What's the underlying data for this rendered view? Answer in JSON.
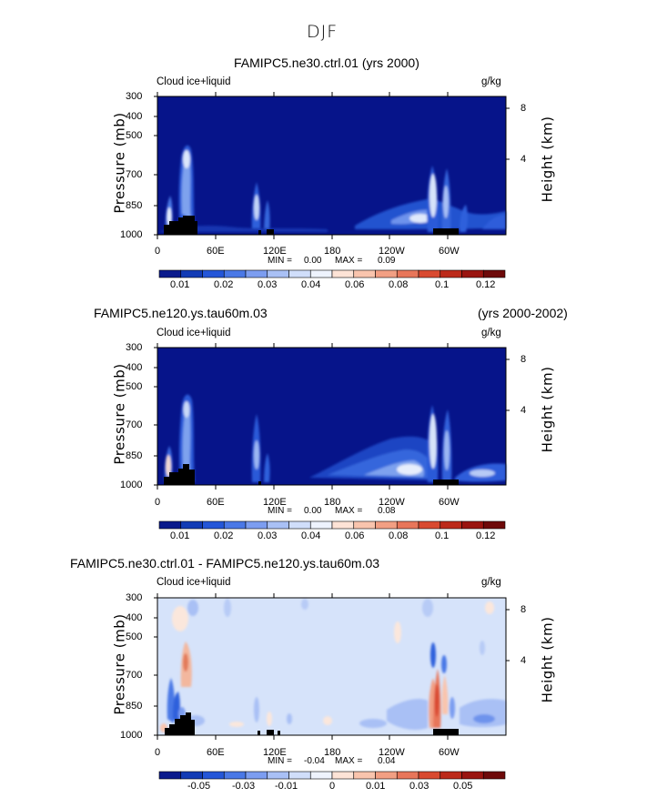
{
  "figure": {
    "suptitle": "DJF",
    "variable": "Cloud ice+liquid",
    "units": "g/kg"
  },
  "chart_data": [
    {
      "type": "heatmap",
      "title": "FAMIPC5.ne30.ctrl.01 (yrs 2000)",
      "title_right": "",
      "variable": "Cloud ice+liquid",
      "units": "g/kg",
      "ylabel": "Pressure (mb)",
      "ylabel_right": "Height (km)",
      "y_ticks": [
        "300",
        "400",
        "500",
        "700",
        "850",
        "1000"
      ],
      "y_right_ticks": [
        "8",
        "4"
      ],
      "x_ticks": [
        "0",
        "60E",
        "120E",
        "180",
        "120W",
        "60W"
      ],
      "min_label": "MIN =",
      "min_value": "0.00",
      "max_label": "MAX =",
      "max_value": "0.09",
      "colorbar_labels": [
        "0.01",
        "0.02",
        "0.03",
        "0.04",
        "0.06",
        "0.08",
        "0.1",
        "0.12"
      ],
      "colorbar_colors": [
        "#0a1a8c",
        "#123bb5",
        "#2456d8",
        "#4a78e6",
        "#7c9df0",
        "#a9c0f5",
        "#d0defa",
        "#eef3fd",
        "#fde3d6",
        "#f9c4ad",
        "#f29f83",
        "#e8765a",
        "#d94a30",
        "#bc2a1a",
        "#9a1510",
        "#6e0a0a"
      ]
    },
    {
      "type": "heatmap",
      "title": "FAMIPC5.ne120.ys.tau60m.03",
      "title_right": "(yrs 2000-2002)",
      "variable": "Cloud ice+liquid",
      "units": "g/kg",
      "ylabel": "Pressure (mb)",
      "ylabel_right": "Height (km)",
      "y_ticks": [
        "300",
        "400",
        "500",
        "700",
        "850",
        "1000"
      ],
      "y_right_ticks": [
        "8",
        "4"
      ],
      "x_ticks": [
        "0",
        "60E",
        "120E",
        "180",
        "120W",
        "60W"
      ],
      "min_label": "MIN =",
      "min_value": "0.00",
      "max_label": "MAX =",
      "max_value": "0.08",
      "colorbar_labels": [
        "0.01",
        "0.02",
        "0.03",
        "0.04",
        "0.06",
        "0.08",
        "0.1",
        "0.12"
      ],
      "colorbar_colors": [
        "#0a1a8c",
        "#123bb5",
        "#2456d8",
        "#4a78e6",
        "#7c9df0",
        "#a9c0f5",
        "#d0defa",
        "#eef3fd",
        "#fde3d6",
        "#f9c4ad",
        "#f29f83",
        "#e8765a",
        "#d94a30",
        "#bc2a1a",
        "#9a1510",
        "#6e0a0a"
      ]
    },
    {
      "type": "heatmap",
      "title": "FAMIPC5.ne30.ctrl.01 - FAMIPC5.ne120.ys.tau60m.03",
      "title_right": "",
      "variable": "Cloud ice+liquid",
      "units": "g/kg",
      "ylabel": "Pressure (mb)",
      "ylabel_right": "Height (km)",
      "y_ticks": [
        "300",
        "400",
        "500",
        "700",
        "850",
        "1000"
      ],
      "y_right_ticks": [
        "8",
        "4"
      ],
      "x_ticks": [
        "0",
        "60E",
        "120E",
        "180",
        "120W",
        "60W"
      ],
      "min_label": "MIN =",
      "min_value": "-0.04",
      "max_label": "MAX =",
      "max_value": "0.04",
      "colorbar_labels": [
        "-0.05",
        "-0.03",
        "-0.01",
        "0",
        "0.01",
        "0.03",
        "0.05"
      ],
      "colorbar_colors": [
        "#0a1a8c",
        "#123bb5",
        "#2456d8",
        "#4a78e6",
        "#7c9df0",
        "#a9c0f5",
        "#d0defa",
        "#eef3fd",
        "#fde3d6",
        "#f9c4ad",
        "#f29f83",
        "#e8765a",
        "#d94a30",
        "#bc2a1a",
        "#9a1510",
        "#6e0a0a"
      ]
    }
  ]
}
